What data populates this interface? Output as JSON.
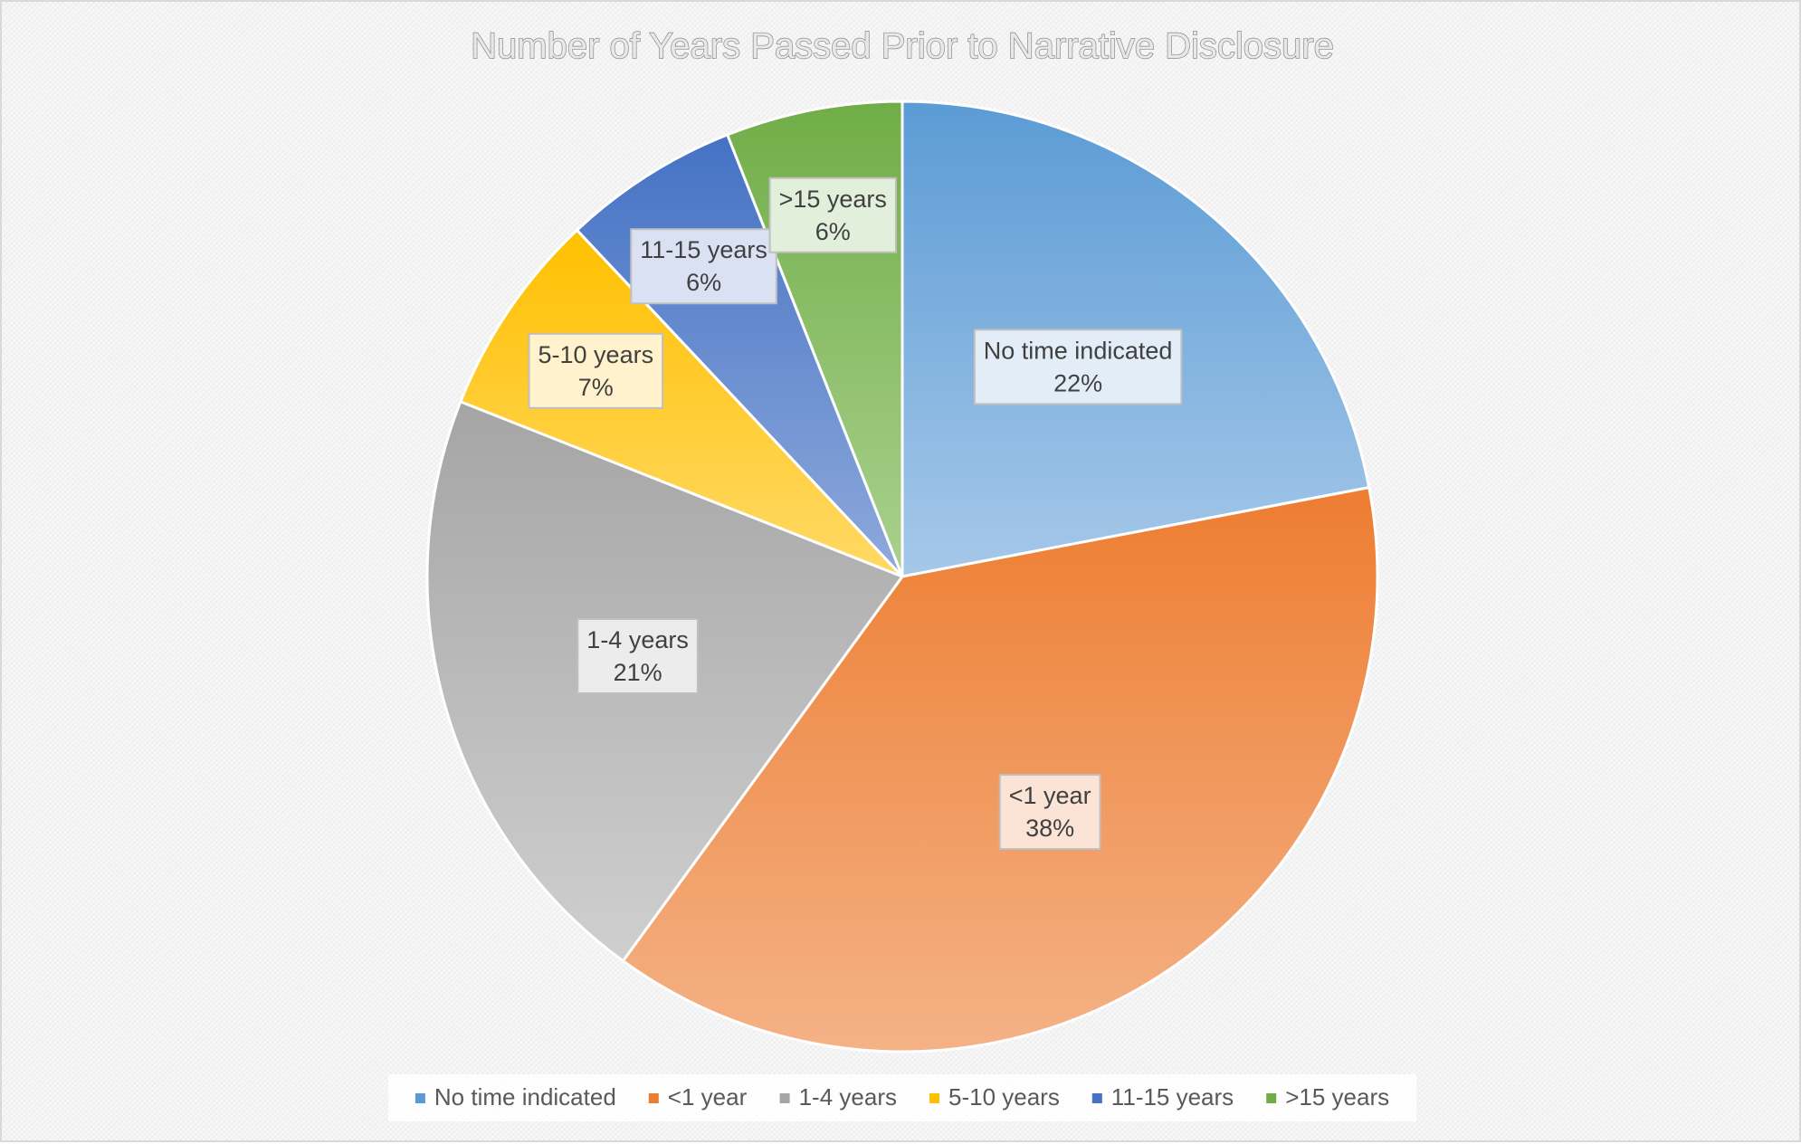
{
  "chart_data": {
    "type": "pie",
    "title": "Number of Years Passed Prior to Narrative Disclosure",
    "start_angle_deg": 0,
    "direction": "clockwise",
    "slices": [
      {
        "label": "No time indicated",
        "value": 22,
        "display": "22%",
        "color": "#5b9bd5",
        "color_light": "#a6c8e9",
        "label_box": "#e3edf8"
      },
      {
        "label": "<1 year",
        "value": 38,
        "display": "38%",
        "color": "#ed7d31",
        "color_light": "#f4b286",
        "label_box": "#fbe4d5"
      },
      {
        "label": "1-4 years",
        "value": 21,
        "display": "21%",
        "color": "#a5a5a5",
        "color_light": "#cfcfcf",
        "label_box": "#ececec"
      },
      {
        "label": "5-10 years",
        "value": 7,
        "display": "7%",
        "color": "#ffc000",
        "color_light": "#ffd966",
        "label_box": "#fff2cc"
      },
      {
        "label": "11-15 years",
        "value": 6,
        "display": "6%",
        "color": "#4472c4",
        "color_light": "#8ea9db",
        "label_box": "#d9e1f2"
      },
      {
        "label": ">15 years",
        "value": 6,
        "display": "6%",
        "color": "#70ad47",
        "color_light": "#a9d18e",
        "label_box": "#e2efda"
      }
    ],
    "legend": {
      "position": "bottom",
      "entries": [
        "No time indicated",
        "<1 year",
        "1-4 years",
        "5-10 years",
        "11-15 years",
        ">15 years"
      ]
    }
  }
}
